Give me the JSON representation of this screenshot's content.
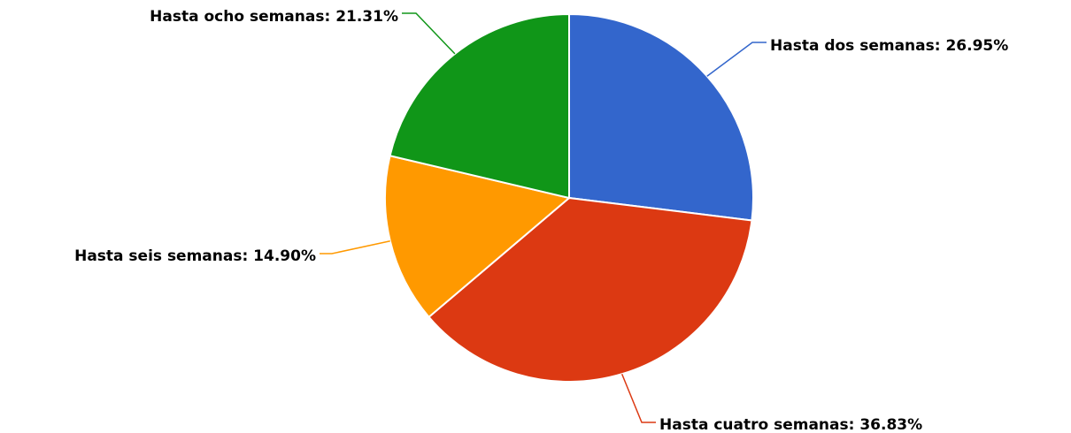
{
  "chart_data": {
    "type": "pie",
    "values": [
      26.95,
      36.83,
      14.9,
      21.31
    ],
    "value_labels": [
      "Hasta dos semanas: 26.95%",
      "Hasta cuatro semanas: 36.83%",
      "Hasta seis semanas: 14.90%",
      "Hasta ocho semanas: 21.31%"
    ],
    "colors": [
      "#3366cc",
      "#dc3912",
      "#ff9900",
      "#109618"
    ]
  }
}
